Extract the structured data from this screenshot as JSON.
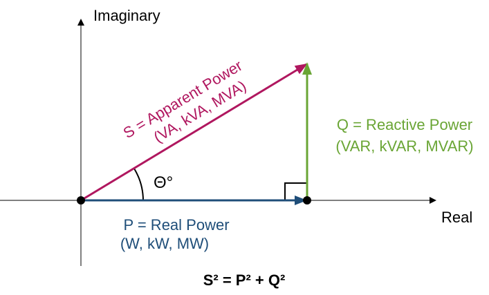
{
  "axes": {
    "imaginary": "Imaginary",
    "real": "Real"
  },
  "apparent": {
    "line1": "S = Apparent Power",
    "line2": "(VA, kVA, MVA)"
  },
  "reactive": {
    "line1": "Q = Reactive Power",
    "line2": "(VAR, kVAR, MVAR)"
  },
  "real_power": {
    "line1": "P = Real Power",
    "line2": "(W, kW, MW)"
  },
  "angle": "Θ°",
  "formula": "S² = P² + Q²"
}
